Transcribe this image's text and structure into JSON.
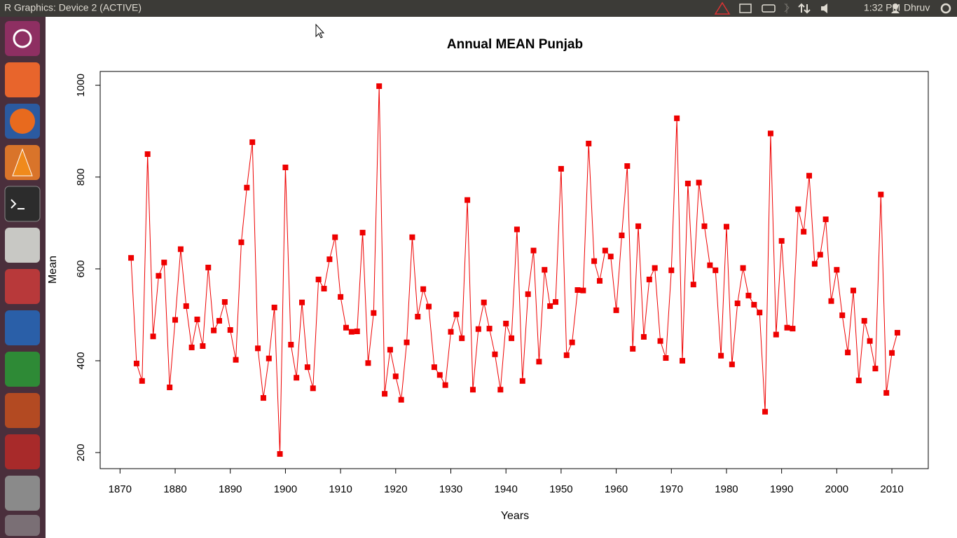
{
  "window": {
    "title": "R Graphics: Device 2 (ACTIVE)"
  },
  "panel": {
    "time": "1:32 PM",
    "user": "Dhruv"
  },
  "chart_data": {
    "type": "line",
    "title": "Annual MEAN Punjab",
    "x_label": "Years",
    "y_label": "Mean",
    "color": "#ee0000",
    "marker": "square",
    "x": [
      1872,
      1873,
      1874,
      1875,
      1876,
      1877,
      1878,
      1879,
      1880,
      1881,
      1882,
      1883,
      1884,
      1885,
      1886,
      1887,
      1888,
      1889,
      1890,
      1891,
      1892,
      1893,
      1894,
      1895,
      1896,
      1897,
      1898,
      1899,
      1900,
      1901,
      1902,
      1903,
      1904,
      1905,
      1906,
      1907,
      1908,
      1909,
      1910,
      1911,
      1912,
      1913,
      1914,
      1915,
      1916,
      1917,
      1918,
      1919,
      1920,
      1921,
      1922,
      1923,
      1924,
      1925,
      1926,
      1927,
      1928,
      1929,
      1930,
      1931,
      1932,
      1933,
      1934,
      1935,
      1936,
      1937,
      1938,
      1939,
      1940,
      1941,
      1942,
      1943,
      1944,
      1945,
      1946,
      1947,
      1948,
      1949,
      1950,
      1951,
      1952,
      1953,
      1954,
      1955,
      1956,
      1957,
      1958,
      1959,
      1960,
      1961,
      1962,
      1963,
      1964,
      1965,
      1966,
      1967,
      1968,
      1969,
      1970,
      1971,
      1972,
      1973,
      1974,
      1975,
      1976,
      1977,
      1978,
      1979,
      1980,
      1981,
      1982,
      1983,
      1984,
      1985,
      1986,
      1987,
      1988,
      1989,
      1990,
      1991,
      1992,
      1993,
      1994,
      1995,
      1996,
      1997,
      1998,
      1999,
      2000,
      2001,
      2002,
      2003,
      2004,
      2005,
      2006,
      2007,
      2008,
      2009,
      2010,
      2011
    ],
    "values": [
      624,
      394,
      356,
      850,
      453,
      585,
      614,
      342,
      489,
      643,
      519,
      429,
      490,
      432,
      603,
      466,
      487,
      528,
      467,
      402,
      658,
      777,
      876,
      427,
      319,
      405,
      516,
      197,
      821,
      435,
      363,
      527,
      386,
      340,
      577,
      557,
      621,
      669,
      539,
      472,
      463,
      464,
      679,
      395,
      504,
      998,
      328,
      424,
      366,
      315,
      440,
      669,
      496,
      556,
      518,
      386,
      369,
      347,
      463,
      501,
      449,
      750,
      337,
      469,
      527,
      470,
      414,
      337,
      481,
      449,
      686,
      356,
      545,
      640,
      398,
      598,
      519,
      528,
      818,
      412,
      440,
      554,
      553,
      873,
      617,
      574,
      640,
      627,
      510,
      673,
      824,
      426,
      693,
      452,
      577,
      602,
      443,
      406,
      597,
      928,
      400,
      786,
      566,
      788,
      693,
      608,
      597,
      411,
      692,
      392,
      525,
      602,
      542,
      522,
      505,
      289,
      895,
      457,
      661,
      472,
      470,
      730,
      681,
      803,
      611,
      631,
      708,
      530,
      598,
      499,
      418,
      553,
      357,
      487,
      443,
      383,
      762,
      330,
      417,
      461
    ],
    "xlim": [
      1866.4,
      2016.6
    ],
    "ylim": [
      165,
      1030
    ],
    "xticks": [
      1870,
      1880,
      1890,
      1900,
      1910,
      1920,
      1930,
      1940,
      1950,
      1960,
      1970,
      1980,
      1990,
      2000,
      2010
    ],
    "yticks": [
      200,
      400,
      600,
      800,
      1000
    ]
  }
}
